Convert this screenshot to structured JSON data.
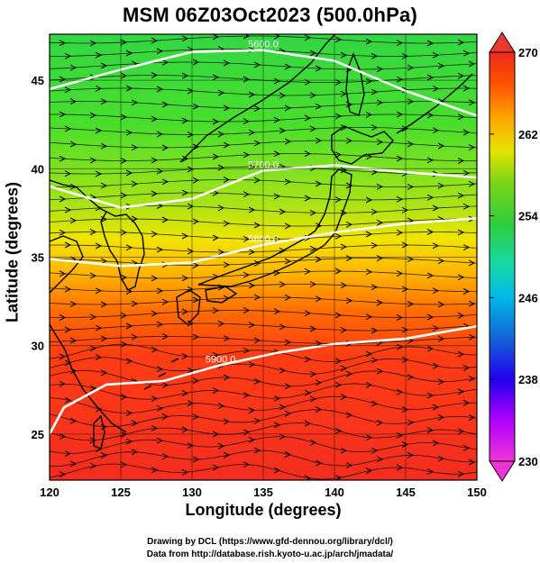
{
  "title": "MSM 06Z03Oct2023 (500.0hPa)",
  "xlabel": "Longitude (degrees)",
  "ylabel": "Latitude  (degrees)",
  "credits": [
    "Drawing by DCL (https://www.gfd-dennou.org/library/dcl/)",
    "Data from http://database.rish.kyoto-u.ac.jp/arch/jmadata/"
  ],
  "map": {
    "lon_range": [
      120,
      150
    ],
    "lat_range": [
      22.4,
      47.6
    ],
    "lon_ticks": [
      120,
      125,
      130,
      135,
      140,
      145,
      150
    ],
    "lat_ticks": [
      25,
      30,
      35,
      40,
      45
    ],
    "grid": true,
    "field": "temperature (K) shaded, wind streamlines, geopotential height contours",
    "contours": [
      {
        "label": "5600.0",
        "points": [
          [
            120,
            44.5
          ],
          [
            125,
            45.6
          ],
          [
            130,
            46.6
          ],
          [
            135,
            46.7
          ],
          [
            140,
            46.1
          ],
          [
            145,
            44.4
          ],
          [
            150,
            43.0
          ]
        ]
      },
      {
        "label": "5700.0",
        "points": [
          [
            120,
            39.0
          ],
          [
            125,
            37.8
          ],
          [
            130,
            38.3
          ],
          [
            135,
            39.9
          ],
          [
            140,
            40.2
          ],
          [
            145,
            39.8
          ],
          [
            150,
            39.5
          ]
        ]
      },
      {
        "label": "5800.0",
        "points": [
          [
            120,
            34.9
          ],
          [
            125,
            34.5
          ],
          [
            130,
            34.7
          ],
          [
            135,
            35.7
          ],
          [
            140,
            36.4
          ],
          [
            145,
            36.9
          ],
          [
            150,
            37.2
          ]
        ]
      },
      {
        "label": "5900.0",
        "points": [
          [
            120,
            25.0
          ],
          [
            121,
            26.5
          ],
          [
            124,
            27.8
          ],
          [
            128,
            28.0
          ],
          [
            132,
            28.9
          ],
          [
            136,
            29.6
          ],
          [
            140,
            30.1
          ],
          [
            145,
            30.4
          ],
          [
            150,
            31.1
          ]
        ]
      }
    ]
  },
  "colorbar": {
    "min": 230,
    "max": 270,
    "tick_labels": [
      "270",
      "262",
      "254",
      "246",
      "238",
      "230"
    ],
    "colors": [
      "#e7336b",
      "#d900ff",
      "#3b00f5",
      "#1f56d8",
      "#13b9e3",
      "#23d9a2",
      "#35ce3a",
      "#89db1a",
      "#e3e700",
      "#ffa300",
      "#ff5a00",
      "#ff2d00",
      "#e8202c"
    ]
  }
}
